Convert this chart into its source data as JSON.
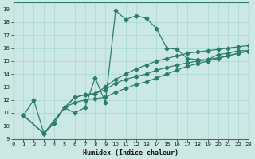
{
  "xlabel": "Humidex (Indice chaleur)",
  "bg_color": "#cce8e4",
  "line_color": "#2d7d6e",
  "grid_color": "#a8d8d0",
  "xlim": [
    0,
    23
  ],
  "ylim": [
    9,
    19.5
  ],
  "yticks": [
    9,
    10,
    11,
    12,
    13,
    14,
    15,
    16,
    17,
    18,
    19
  ],
  "xticks": [
    0,
    1,
    2,
    3,
    4,
    5,
    6,
    7,
    8,
    9,
    10,
    11,
    12,
    13,
    14,
    15,
    16,
    17,
    18,
    19,
    20,
    21,
    22,
    23
  ],
  "curve1_x": [
    1,
    2,
    3,
    4,
    5,
    6,
    7,
    8,
    9,
    10,
    11,
    12,
    13,
    14,
    15,
    16,
    17,
    18,
    19,
    20,
    21,
    22,
    23
  ],
  "curve1_y": [
    10.8,
    12.0,
    9.4,
    10.2,
    11.4,
    11.0,
    11.4,
    13.7,
    11.8,
    18.9,
    18.2,
    18.5,
    18.3,
    17.5,
    16.0,
    15.9,
    15.2,
    15.1,
    15.1,
    15.5,
    15.6,
    15.8,
    15.8
  ],
  "curve2_x": [
    1,
    3,
    5,
    6,
    7,
    8,
    9,
    10,
    11,
    12,
    13,
    14,
    15,
    16,
    17,
    18,
    19,
    20,
    21,
    22,
    23
  ],
  "curve2_y": [
    10.8,
    9.4,
    11.4,
    12.2,
    12.4,
    12.5,
    12.8,
    13.3,
    13.6,
    13.8,
    14.0,
    14.3,
    14.5,
    14.7,
    14.85,
    15.0,
    15.1,
    15.25,
    15.4,
    15.6,
    15.75
  ],
  "curve3_x": [
    1,
    3,
    5,
    6,
    7,
    8,
    9,
    10,
    11,
    12,
    13,
    14,
    15,
    16,
    17,
    18,
    19,
    20,
    21,
    22,
    23
  ],
  "curve3_y": [
    10.8,
    9.4,
    11.4,
    12.2,
    12.4,
    12.5,
    13.0,
    13.6,
    14.0,
    14.4,
    14.7,
    15.0,
    15.2,
    15.4,
    15.6,
    15.7,
    15.8,
    15.9,
    16.0,
    16.1,
    16.2
  ],
  "curve4_x": [
    1,
    3,
    5,
    6,
    7,
    8,
    9,
    10,
    11,
    12,
    13,
    14,
    15,
    16,
    17,
    18,
    19,
    20,
    21,
    22,
    23
  ],
  "curve4_y": [
    10.8,
    9.4,
    11.4,
    11.8,
    12.0,
    12.1,
    12.2,
    12.6,
    12.9,
    13.2,
    13.4,
    13.7,
    14.0,
    14.3,
    14.6,
    14.8,
    15.0,
    15.2,
    15.4,
    15.6,
    15.8
  ]
}
